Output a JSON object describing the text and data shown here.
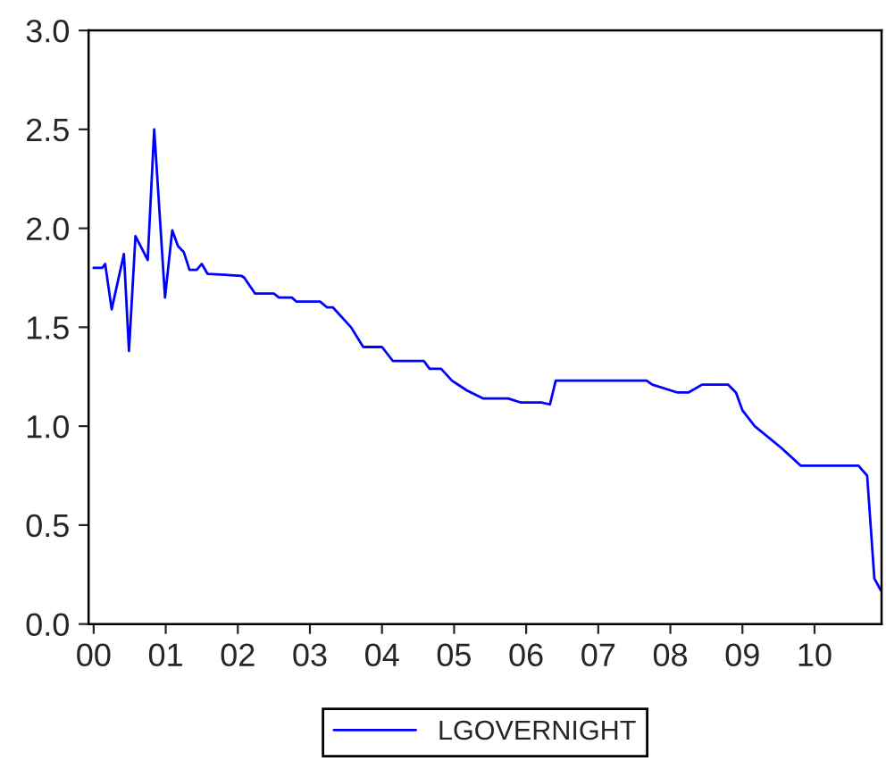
{
  "chart_data": {
    "type": "line",
    "legend": "bottom",
    "grid": false,
    "marker": "none",
    "line_style": "solid",
    "xlim": [
      1999.93,
      2010.93
    ],
    "ylim": [
      0.0,
      3.0
    ],
    "xticks": [
      {
        "value": 2000,
        "label": "00"
      },
      {
        "value": 2001,
        "label": "01"
      },
      {
        "value": 2002,
        "label": "02"
      },
      {
        "value": 2003,
        "label": "03"
      },
      {
        "value": 2004,
        "label": "04"
      },
      {
        "value": 2005,
        "label": "05"
      },
      {
        "value": 2006,
        "label": "06"
      },
      {
        "value": 2007,
        "label": "07"
      },
      {
        "value": 2008,
        "label": "08"
      },
      {
        "value": 2009,
        "label": "09"
      },
      {
        "value": 2010,
        "label": "10"
      }
    ],
    "yticks": [
      {
        "value": 0,
        "label": "0.0"
      },
      {
        "value": 0.5,
        "label": "0.5"
      },
      {
        "value": 1,
        "label": "1.0"
      },
      {
        "value": 1.5,
        "label": "1.5"
      },
      {
        "value": 2,
        "label": "2.0"
      },
      {
        "value": 2.5,
        "label": "2.5"
      },
      {
        "value": 3,
        "label": "3.0"
      }
    ],
    "series": [
      {
        "name": "LGOVERNIGHT",
        "color": "#0000ff",
        "x": [
          2000.0,
          2000.12,
          2000.16,
          2000.25,
          2000.42,
          2000.49,
          2000.58,
          2000.75,
          2000.84,
          2000.99,
          2001.09,
          2001.17,
          2001.25,
          2001.33,
          2001.43,
          2001.5,
          2001.58,
          2002.05,
          2002.09,
          2002.24,
          2002.5,
          2002.57,
          2002.75,
          2002.81,
          2003.14,
          2003.24,
          2003.32,
          2003.57,
          2003.74,
          2004.0,
          2004.15,
          2004.58,
          2004.66,
          2004.82,
          2004.97,
          2005.18,
          2005.4,
          2005.75,
          2005.92,
          2006.21,
          2006.33,
          2006.41,
          2007.67,
          2007.75,
          2008.1,
          2008.25,
          2008.44,
          2008.8,
          2008.91,
          2009.0,
          2009.17,
          2009.54,
          2009.81,
          2010.61,
          2010.73,
          2010.83,
          2010.92
        ],
        "values": [
          1.8,
          1.8,
          1.82,
          1.59,
          1.87,
          1.38,
          1.96,
          1.84,
          2.5,
          1.65,
          1.99,
          1.91,
          1.88,
          1.79,
          1.79,
          1.82,
          1.77,
          1.76,
          1.75,
          1.67,
          1.67,
          1.65,
          1.65,
          1.63,
          1.63,
          1.6,
          1.6,
          1.5,
          1.4,
          1.4,
          1.33,
          1.33,
          1.29,
          1.29,
          1.23,
          1.18,
          1.14,
          1.14,
          1.12,
          1.12,
          1.11,
          1.23,
          1.23,
          1.21,
          1.17,
          1.17,
          1.21,
          1.21,
          1.17,
          1.08,
          1.0,
          0.89,
          0.8,
          0.8,
          0.75,
          0.23,
          0.17
        ]
      }
    ]
  }
}
